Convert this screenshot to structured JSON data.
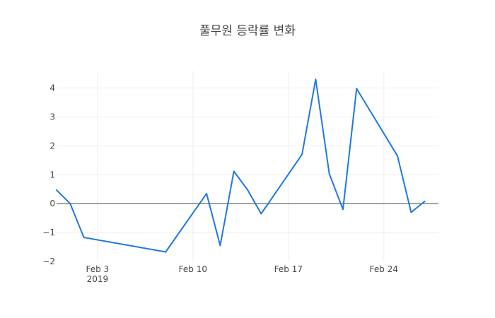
{
  "chart_data": {
    "type": "line",
    "title": "풀무원 등락률 변화",
    "xlabel": "",
    "ylabel": "",
    "x_range": [
      "2019-01-31",
      "2019-02-28"
    ],
    "ylim": [
      -2,
      4.6
    ],
    "grid": true,
    "zero_line": true,
    "x_ticks": [
      {
        "date": "2019-02-03",
        "label": "Feb 3",
        "sublabel": "2019"
      },
      {
        "date": "2019-02-10",
        "label": "Feb 10",
        "sublabel": ""
      },
      {
        "date": "2019-02-17",
        "label": "Feb 17",
        "sublabel": ""
      },
      {
        "date": "2019-02-24",
        "label": "Feb 24",
        "sublabel": ""
      }
    ],
    "y_ticks": [
      {
        "value": 4,
        "label": "4"
      },
      {
        "value": 3,
        "label": "3"
      },
      {
        "value": 2,
        "label": "2"
      },
      {
        "value": 1,
        "label": "1"
      },
      {
        "value": 0,
        "label": "0"
      },
      {
        "value": -1,
        "label": "−1"
      },
      {
        "value": -2,
        "label": "−2"
      }
    ],
    "series": [
      {
        "color": "#1f77e0",
        "points": [
          {
            "x": "2019-01-31",
            "y": 0.47
          },
          {
            "x": "2019-02-01",
            "y": 0.0
          },
          {
            "x": "2019-02-02",
            "y": -1.17
          },
          {
            "x": "2019-02-08",
            "y": -1.67
          },
          {
            "x": "2019-02-11",
            "y": 0.35
          },
          {
            "x": "2019-02-12",
            "y": -1.45
          },
          {
            "x": "2019-02-13",
            "y": 1.12
          },
          {
            "x": "2019-02-14",
            "y": 0.48
          },
          {
            "x": "2019-02-15",
            "y": -0.35
          },
          {
            "x": "2019-02-18",
            "y": 1.7
          },
          {
            "x": "2019-02-19",
            "y": 4.3
          },
          {
            "x": "2019-02-20",
            "y": 1.03
          },
          {
            "x": "2019-02-21",
            "y": -0.2
          },
          {
            "x": "2019-02-22",
            "y": 3.98
          },
          {
            "x": "2019-02-25",
            "y": 1.65
          },
          {
            "x": "2019-02-26",
            "y": -0.3
          },
          {
            "x": "2019-02-27",
            "y": 0.08
          }
        ]
      }
    ]
  }
}
